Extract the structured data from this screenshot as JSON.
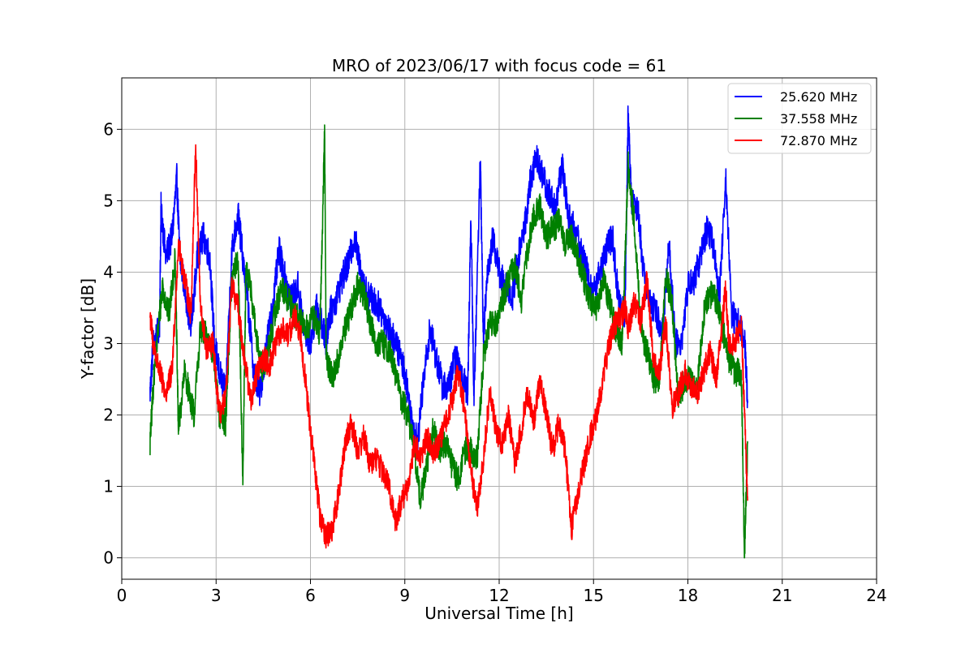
{
  "chart_data": {
    "type": "line",
    "title": "MRO of 2023/06/17 with focus code = 61",
    "xlabel": "Universal Time [h]",
    "ylabel": "Y-factor [dB]",
    "xlim": [
      0,
      24
    ],
    "ylim": [
      -0.3,
      6.72
    ],
    "xticks": [
      0,
      3,
      6,
      9,
      12,
      15,
      18,
      21,
      24
    ],
    "yticks": [
      0,
      1,
      2,
      3,
      4,
      5,
      6
    ],
    "grid": true,
    "legend_position": "top-right",
    "series": [
      {
        "name": "25.620 MHz",
        "color": "#0000ff",
        "x": [
          0.9,
          1.0,
          1.2,
          1.25,
          1.4,
          1.6,
          1.75,
          1.85,
          2.0,
          2.2,
          2.4,
          2.6,
          2.8,
          2.95,
          3.1,
          3.3,
          3.5,
          3.7,
          3.8,
          4.0,
          4.2,
          4.4,
          4.6,
          4.8,
          5.0,
          5.2,
          5.4,
          5.6,
          5.8,
          6.0,
          6.2,
          6.4,
          6.5,
          6.6,
          6.8,
          7.0,
          7.2,
          7.4,
          7.6,
          7.8,
          8.0,
          8.2,
          8.4,
          8.6,
          8.8,
          9.0,
          9.2,
          9.4,
          9.6,
          9.8,
          10.0,
          10.2,
          10.4,
          10.6,
          10.8,
          11.0,
          11.1,
          11.2,
          11.4,
          11.5,
          11.6,
          11.8,
          12.0,
          12.2,
          12.4,
          12.6,
          12.8,
          13.0,
          13.2,
          13.4,
          13.6,
          13.8,
          14.0,
          14.2,
          14.4,
          14.6,
          14.8,
          15.0,
          15.2,
          15.4,
          15.6,
          15.8,
          16.0,
          16.1,
          16.2,
          16.4,
          16.6,
          16.8,
          17.0,
          17.2,
          17.4,
          17.6,
          17.8,
          18.0,
          18.2,
          18.4,
          18.6,
          18.8,
          19.0,
          19.2,
          19.4,
          19.6,
          19.8,
          19.9
        ],
        "y": [
          2.3,
          3.0,
          3.2,
          4.9,
          4.2,
          4.5,
          5.3,
          4.2,
          3.8,
          3.2,
          4.2,
          4.5,
          4.2,
          3.0,
          2.6,
          2.3,
          4.3,
          4.8,
          4.4,
          3.6,
          2.6,
          2.3,
          3.0,
          3.5,
          4.3,
          3.9,
          3.6,
          3.8,
          3.2,
          3.0,
          3.5,
          3.2,
          3.0,
          3.4,
          3.6,
          3.9,
          4.1,
          4.5,
          4.0,
          3.7,
          3.6,
          3.5,
          3.3,
          3.1,
          2.9,
          2.6,
          2.0,
          1.6,
          2.5,
          3.2,
          2.8,
          2.4,
          2.4,
          2.8,
          2.6,
          2.3,
          4.8,
          2.2,
          5.6,
          3.0,
          3.9,
          4.5,
          4.0,
          3.8,
          3.6,
          4.2,
          4.6,
          5.3,
          5.6,
          5.3,
          5.1,
          4.9,
          5.5,
          4.8,
          4.6,
          4.3,
          4.0,
          3.7,
          4.0,
          4.3,
          4.5,
          3.6,
          3.4,
          6.3,
          5.0,
          4.9,
          4.0,
          3.6,
          3.4,
          3.2,
          4.4,
          3.0,
          3.0,
          3.8,
          3.9,
          4.2,
          4.6,
          4.4,
          3.6,
          5.3,
          3.4,
          3.3,
          3.1,
          2.2
        ]
      },
      {
        "name": "37.558 MHz",
        "color": "#008000",
        "x": [
          0.9,
          1.0,
          1.2,
          1.3,
          1.5,
          1.7,
          1.8,
          2.0,
          2.2,
          2.3,
          2.5,
          2.7,
          2.9,
          3.1,
          3.3,
          3.5,
          3.7,
          3.85,
          3.95,
          4.1,
          4.3,
          4.5,
          4.7,
          4.9,
          5.1,
          5.3,
          5.5,
          5.7,
          5.9,
          6.1,
          6.3,
          6.4,
          6.45,
          6.5,
          6.7,
          6.9,
          7.1,
          7.3,
          7.5,
          7.7,
          7.9,
          8.1,
          8.3,
          8.5,
          8.7,
          8.9,
          9.1,
          9.3,
          9.5,
          9.7,
          9.9,
          10.1,
          10.3,
          10.5,
          10.7,
          10.9,
          11.1,
          11.3,
          11.5,
          11.7,
          11.9,
          12.1,
          12.3,
          12.5,
          12.7,
          12.9,
          13.1,
          13.3,
          13.5,
          13.7,
          13.9,
          14.1,
          14.3,
          14.5,
          14.7,
          14.9,
          15.1,
          15.3,
          15.5,
          15.7,
          15.9,
          16.0,
          16.1,
          16.3,
          16.5,
          16.7,
          16.9,
          17.1,
          17.3,
          17.5,
          17.7,
          17.9,
          18.1,
          18.3,
          18.5,
          18.7,
          18.9,
          19.1,
          19.3,
          19.5,
          19.7,
          19.8,
          19.9
        ],
        "y": [
          1.6,
          2.4,
          3.4,
          3.8,
          3.4,
          4.2,
          1.8,
          2.6,
          2.2,
          2.0,
          3.2,
          3.1,
          2.9,
          2.0,
          1.9,
          3.9,
          4.2,
          1.1,
          4.0,
          3.8,
          3.0,
          2.6,
          3.0,
          3.5,
          3.8,
          3.6,
          3.4,
          3.3,
          3.2,
          3.4,
          3.1,
          5.0,
          6.0,
          2.8,
          2.5,
          2.8,
          3.2,
          3.5,
          3.8,
          3.7,
          3.3,
          3.0,
          3.0,
          2.9,
          2.6,
          2.2,
          2.0,
          1.5,
          0.8,
          1.3,
          1.8,
          1.5,
          1.6,
          1.3,
          1.1,
          1.5,
          1.5,
          1.4,
          2.8,
          3.3,
          3.3,
          3.6,
          3.9,
          4.1,
          3.6,
          4.3,
          4.8,
          4.9,
          4.5,
          4.6,
          4.7,
          4.4,
          4.5,
          4.2,
          3.9,
          3.6,
          3.5,
          3.9,
          3.6,
          3.2,
          3.0,
          4.1,
          5.5,
          4.7,
          3.2,
          2.9,
          2.5,
          2.5,
          4.0,
          3.5,
          2.2,
          2.5,
          2.5,
          2.4,
          3.4,
          3.7,
          3.6,
          3.2,
          2.8,
          2.6,
          2.6,
          0.0,
          1.6
        ]
      },
      {
        "name": "72.870 MHz",
        "color": "#ff0000",
        "x": [
          0.9,
          1.0,
          1.2,
          1.4,
          1.6,
          1.8,
          2.0,
          2.2,
          2.35,
          2.5,
          2.7,
          2.9,
          3.1,
          3.3,
          3.5,
          3.7,
          3.9,
          4.1,
          4.3,
          4.5,
          4.7,
          4.9,
          5.1,
          5.3,
          5.5,
          5.7,
          5.9,
          6.1,
          6.3,
          6.5,
          6.7,
          6.9,
          7.1,
          7.3,
          7.5,
          7.7,
          7.9,
          8.1,
          8.3,
          8.5,
          8.7,
          8.9,
          9.1,
          9.3,
          9.5,
          9.7,
          9.9,
          10.1,
          10.3,
          10.5,
          10.7,
          10.9,
          11.1,
          11.3,
          11.5,
          11.7,
          11.9,
          12.1,
          12.3,
          12.5,
          12.7,
          12.9,
          13.1,
          13.3,
          13.5,
          13.7,
          13.9,
          14.1,
          14.3,
          14.5,
          14.7,
          14.9,
          15.1,
          15.3,
          15.5,
          15.7,
          15.9,
          16.0,
          16.1,
          16.3,
          16.5,
          16.7,
          16.9,
          17.1,
          17.3,
          17.5,
          17.7,
          17.9,
          18.1,
          18.3,
          18.5,
          18.7,
          18.9,
          19.1,
          19.2,
          19.3,
          19.5,
          19.7,
          19.8,
          19.9
        ],
        "y": [
          3.4,
          3.0,
          2.6,
          2.3,
          2.6,
          4.4,
          3.9,
          3.4,
          5.8,
          3.5,
          2.9,
          3.0,
          2.0,
          2.2,
          3.8,
          3.5,
          2.8,
          2.2,
          2.6,
          2.8,
          2.7,
          3.0,
          3.2,
          3.1,
          3.4,
          3.1,
          2.2,
          1.4,
          0.6,
          0.3,
          0.4,
          0.9,
          1.6,
          1.9,
          1.5,
          1.7,
          1.3,
          1.4,
          1.2,
          1.0,
          0.5,
          0.8,
          1.0,
          1.6,
          1.4,
          1.7,
          1.5,
          1.6,
          1.9,
          2.2,
          2.6,
          2.1,
          1.2,
          0.7,
          1.4,
          2.3,
          1.8,
          1.6,
          2.0,
          1.3,
          1.8,
          2.3,
          1.9,
          2.5,
          2.0,
          1.5,
          1.9,
          1.5,
          0.4,
          0.9,
          1.3,
          1.7,
          2.0,
          2.5,
          3.0,
          3.3,
          3.4,
          3.5,
          3.2,
          3.6,
          3.3,
          3.9,
          2.8,
          2.6,
          3.3,
          2.1,
          2.3,
          2.6,
          2.4,
          2.3,
          2.6,
          2.9,
          2.5,
          3.3,
          3.8,
          3.0,
          3.0,
          3.3,
          2.0,
          0.8
        ]
      }
    ]
  }
}
